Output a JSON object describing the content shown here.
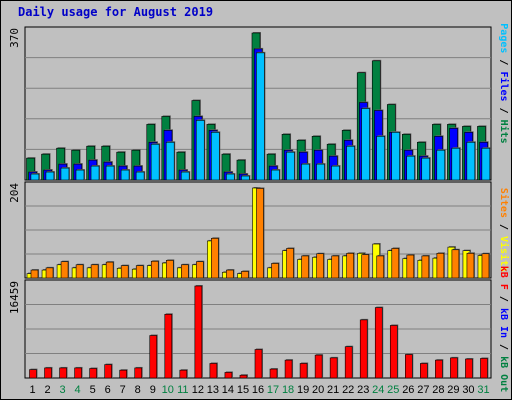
{
  "title": "Daily usage for August 2019",
  "colors": {
    "hits": "#008040",
    "files": "#0000ff",
    "pages": "#00c0ff",
    "visits": "#ffff00",
    "sites": "#ff8000",
    "kbytes": "#ff0000",
    "weekend": "#008040",
    "weekday": "#000000",
    "panel": "#c0c0c0"
  },
  "chart_data": [
    {
      "type": "bar",
      "ylabel_max": "370",
      "ylim": [
        0,
        370
      ],
      "series_labels": {
        "pages": "Pages",
        "files": "Files",
        "hits": "Hits"
      },
      "x": [
        "1",
        "2",
        "3",
        "4",
        "5",
        "6",
        "7",
        "8",
        "9",
        "10",
        "11",
        "12",
        "13",
        "14",
        "15",
        "16",
        "17",
        "18",
        "19",
        "20",
        "21",
        "22",
        "23",
        "24",
        "25",
        "26",
        "27",
        "28",
        "29",
        "30",
        "31"
      ],
      "series": [
        {
          "name": "Hits",
          "values": [
            55,
            65,
            80,
            75,
            85,
            85,
            70,
            75,
            140,
            160,
            70,
            200,
            140,
            65,
            50,
            370,
            65,
            115,
            100,
            110,
            90,
            125,
            270,
            300,
            190,
            115,
            95,
            140,
            140,
            135,
            135
          ]
        },
        {
          "name": "Files",
          "values": [
            20,
            25,
            40,
            40,
            50,
            45,
            35,
            35,
            95,
            125,
            25,
            160,
            125,
            20,
            15,
            330,
            35,
            75,
            70,
            75,
            60,
            100,
            195,
            175,
            120,
            75,
            60,
            110,
            130,
            120,
            95
          ]
        },
        {
          "name": "Pages",
          "values": [
            15,
            20,
            30,
            25,
            35,
            35,
            25,
            20,
            90,
            95,
            20,
            150,
            120,
            15,
            10,
            320,
            25,
            70,
            40,
            40,
            35,
            85,
            180,
            110,
            120,
            60,
            55,
            75,
            80,
            95,
            80
          ]
        }
      ]
    },
    {
      "type": "bar",
      "ylabel_max": "204",
      "ylim": [
        0,
        204
      ],
      "series_labels": {
        "sites": "Sites",
        "visits": "Visits"
      },
      "x": [
        "1",
        "2",
        "3",
        "4",
        "5",
        "6",
        "7",
        "8",
        "9",
        "10",
        "11",
        "12",
        "13",
        "14",
        "15",
        "16",
        "17",
        "18",
        "19",
        "20",
        "21",
        "22",
        "23",
        "24",
        "25",
        "26",
        "27",
        "28",
        "29",
        "30",
        "31"
      ],
      "series": [
        {
          "name": "Visits",
          "values": [
            10,
            18,
            30,
            23,
            23,
            30,
            22,
            20,
            28,
            34,
            23,
            30,
            84,
            13,
            10,
            204,
            23,
            62,
            42,
            47,
            42,
            50,
            56,
            77,
            62,
            44,
            40,
            45,
            70,
            62,
            51
          ]
        },
        {
          "name": "Sites",
          "values": [
            18,
            23,
            37,
            30,
            30,
            36,
            28,
            28,
            38,
            40,
            30,
            37,
            90,
            18,
            15,
            203,
            33,
            67,
            50,
            55,
            50,
            56,
            53,
            50,
            67,
            52,
            50,
            56,
            64,
            56,
            55
          ]
        }
      ]
    },
    {
      "type": "bar",
      "ylabel_max": "16459",
      "ylim": [
        0,
        16459
      ],
      "series_labels": {
        "kbytes": "kB F",
        "kbin": "kB In",
        "kbout": "kB Out"
      },
      "x": [
        "1",
        "2",
        "3",
        "4",
        "5",
        "6",
        "7",
        "8",
        "9",
        "10",
        "11",
        "12",
        "13",
        "14",
        "15",
        "16",
        "17",
        "18",
        "19",
        "20",
        "21",
        "22",
        "23",
        "24",
        "25",
        "26",
        "27",
        "28",
        "29",
        "30",
        "31"
      ],
      "weekend_days": [
        "3",
        "4",
        "10",
        "11",
        "17",
        "18",
        "24",
        "25",
        "31"
      ],
      "series": [
        {
          "name": "kB F",
          "values": [
            1500,
            1800,
            1800,
            1800,
            1700,
            2400,
            1400,
            1800,
            7600,
            11400,
            1400,
            16459,
            2600,
            1000,
            500,
            5100,
            1600,
            3200,
            2600,
            4100,
            3600,
            5600,
            10400,
            12600,
            9400,
            4200,
            2600,
            3200,
            3600,
            3400,
            3500
          ]
        }
      ]
    }
  ]
}
